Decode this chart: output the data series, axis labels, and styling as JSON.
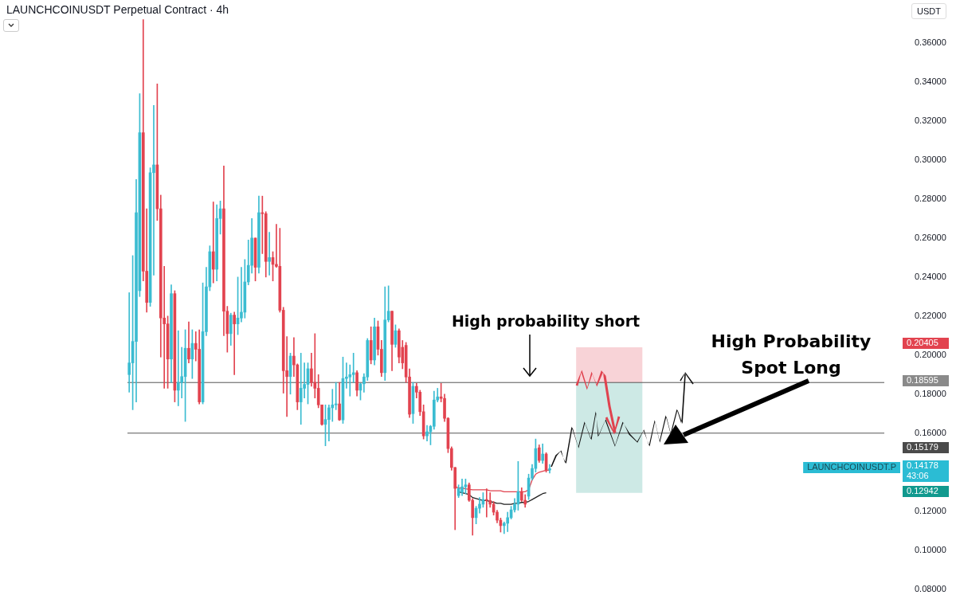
{
  "chart_data": {
    "type": "candlestick",
    "title": "LAUNCHCOINUSDT Perpetual Contract · 4h",
    "ylabel": "USDT",
    "categories": [
      null,
      null,
      null,
      null,
      null,
      null,
      null,
      null,
      null,
      null,
      null,
      null,
      null,
      null,
      null,
      null,
      null,
      null,
      null,
      null,
      null,
      null,
      null,
      null,
      null,
      null,
      null,
      null,
      null,
      null,
      null,
      null,
      null,
      null,
      null,
      null,
      null,
      null,
      null,
      null,
      null,
      null,
      null,
      null,
      null,
      null,
      null,
      null,
      null,
      null,
      null,
      null,
      null,
      null,
      null,
      null,
      null,
      null,
      null,
      null,
      null,
      null,
      null,
      null,
      null,
      null,
      null,
      null,
      null,
      null,
      null,
      null,
      null,
      null,
      null,
      null,
      null,
      null,
      null,
      null,
      null,
      null,
      null,
      null,
      null,
      null,
      null,
      null,
      null,
      null,
      null,
      null,
      null,
      null,
      null,
      null,
      null,
      null,
      null,
      null,
      null,
      null,
      null,
      null,
      null,
      null,
      null,
      null,
      null,
      null,
      null,
      null,
      null,
      null,
      null,
      null,
      null,
      null,
      null,
      null,
      null,
      null,
      null,
      null,
      null,
      null,
      null,
      null,
      null,
      null,
      null,
      null,
      null,
      null,
      null,
      null,
      null,
      null,
      null,
      null,
      null,
      null,
      null,
      null,
      null,
      null,
      null,
      null,
      null,
      null,
      null,
      null,
      null,
      null,
      null,
      null,
      null,
      null,
      null,
      null,
      null,
      null,
      null,
      null,
      null,
      null,
      null,
      null,
      null,
      null,
      null,
      null,
      null,
      null,
      null,
      null,
      null,
      null,
      null,
      null,
      null,
      null,
      null,
      null,
      null,
      null,
      null,
      null,
      null,
      null,
      null,
      null,
      null,
      null,
      null,
      null,
      null,
      null,
      null,
      null,
      null,
      null,
      null,
      null,
      null,
      null,
      null,
      null,
      null,
      null,
      null,
      null,
      null,
      null,
      null,
      null
    ],
    "ohlc": [
      [
        0.19,
        0.232,
        0.181,
        0.196
      ],
      [
        0.196,
        0.251,
        0.172,
        0.207
      ],
      [
        0.207,
        0.29,
        0.176,
        0.273
      ],
      [
        0.233,
        0.334,
        0.23,
        0.314
      ],
      [
        0.314,
        0.372,
        0.238,
        0.243
      ],
      [
        0.243,
        0.275,
        0.222,
        0.227
      ],
      [
        0.227,
        0.296,
        0.225,
        0.2935
      ],
      [
        0.2935,
        0.328,
        0.241,
        0.2975
      ],
      [
        0.2975,
        0.339,
        0.269,
        0.275
      ],
      [
        0.275,
        0.282,
        0.199,
        0.219
      ],
      [
        0.219,
        0.2455,
        0.183,
        0.216
      ],
      [
        0.216,
        0.22,
        0.183,
        0.198
      ],
      [
        0.198,
        0.236,
        0.186,
        0.2315
      ],
      [
        0.2315,
        0.233,
        0.176,
        0.182
      ],
      [
        0.182,
        0.2125,
        0.174,
        0.186
      ],
      [
        0.186,
        0.204,
        0.178,
        0.189
      ],
      [
        0.189,
        0.213,
        0.166,
        0.2035
      ],
      [
        0.2035,
        0.217,
        0.196,
        0.198
      ],
      [
        0.198,
        0.213,
        0.188,
        0.206
      ],
      [
        0.206,
        0.212,
        0.197,
        0.203
      ],
      [
        0.203,
        0.213,
        0.175,
        0.176
      ],
      [
        0.176,
        0.237,
        0.175,
        0.212
      ],
      [
        0.212,
        0.245,
        0.21,
        0.235
      ],
      [
        0.235,
        0.256,
        0.233,
        0.253
      ],
      [
        0.253,
        0.2785,
        0.237,
        0.244
      ],
      [
        0.244,
        0.277,
        0.238,
        0.27
      ],
      [
        0.27,
        0.279,
        0.262,
        0.275
      ],
      [
        0.275,
        0.297,
        0.21,
        0.2225
      ],
      [
        0.2225,
        0.225,
        0.2015,
        0.211
      ],
      [
        0.211,
        0.2215,
        0.205,
        0.2205
      ],
      [
        0.2205,
        0.222,
        0.19,
        0.216
      ],
      [
        0.216,
        0.24,
        0.2105,
        0.219
      ],
      [
        0.219,
        0.245,
        0.217,
        0.222
      ],
      [
        0.222,
        0.249,
        0.219,
        0.2375
      ],
      [
        0.2375,
        0.259,
        0.236,
        0.246
      ],
      [
        0.246,
        0.27,
        0.242,
        0.26
      ],
      [
        0.26,
        0.26,
        0.238,
        0.245
      ],
      [
        0.245,
        0.2815,
        0.242,
        0.273
      ],
      [
        0.273,
        0.2815,
        0.252,
        0.2725
      ],
      [
        0.2725,
        0.2735,
        0.24,
        0.248
      ],
      [
        0.248,
        0.263,
        0.241,
        0.25
      ],
      [
        0.25,
        0.253,
        0.238,
        0.2465
      ],
      [
        0.2465,
        0.267,
        0.245,
        0.2455
      ],
      [
        0.2455,
        0.265,
        0.222,
        0.223
      ],
      [
        0.223,
        0.2245,
        0.1805,
        0.192
      ],
      [
        0.192,
        0.2095,
        0.1685,
        0.189
      ],
      [
        0.189,
        0.201,
        0.18,
        0.1995
      ],
      [
        0.1995,
        0.209,
        0.189,
        0.195
      ],
      [
        0.195,
        0.1955,
        0.172,
        0.176
      ],
      [
        0.176,
        0.201,
        0.1645,
        0.183
      ],
      [
        0.183,
        0.196,
        0.178,
        0.185
      ],
      [
        0.185,
        0.196,
        0.175,
        0.193
      ],
      [
        0.193,
        0.201,
        0.184,
        0.186
      ],
      [
        0.186,
        0.211,
        0.178,
        0.183
      ],
      [
        0.183,
        0.19,
        0.173,
        0.1745
      ],
      [
        0.1745,
        0.1745,
        0.164,
        0.1645
      ],
      [
        0.1645,
        0.1745,
        0.1535,
        0.167
      ],
      [
        0.167,
        0.1745,
        0.156,
        0.173
      ],
      [
        0.173,
        0.1825,
        0.166,
        0.1745
      ],
      [
        0.1745,
        0.186,
        0.172,
        0.175
      ],
      [
        0.175,
        0.186,
        0.1665,
        0.1668
      ],
      [
        0.1668,
        0.199,
        0.165,
        0.188
      ],
      [
        0.188,
        0.196,
        0.183,
        0.1888
      ],
      [
        0.1888,
        0.195,
        0.179,
        0.19
      ],
      [
        0.19,
        0.201,
        0.186,
        0.191
      ],
      [
        0.191,
        0.192,
        0.179,
        0.182
      ],
      [
        0.182,
        0.1855,
        0.177,
        0.1853
      ],
      [
        0.1853,
        0.1905,
        0.181,
        0.1888
      ],
      [
        0.1888,
        0.2085,
        0.187,
        0.2075
      ],
      [
        0.2075,
        0.2145,
        0.1955,
        0.1975
      ],
      [
        0.1975,
        0.219,
        0.195,
        0.2145
      ],
      [
        0.2145,
        0.2175,
        0.2,
        0.203
      ],
      [
        0.203,
        0.2075,
        0.189,
        0.191
      ],
      [
        0.191,
        0.235,
        0.187,
        0.218
      ],
      [
        0.218,
        0.2355,
        0.217,
        0.2225
      ],
      [
        0.2225,
        0.2225,
        0.192,
        0.2055
      ],
      [
        0.2055,
        0.2155,
        0.204,
        0.2125
      ],
      [
        0.2125,
        0.2135,
        0.196,
        0.199
      ],
      [
        0.204,
        0.2075,
        0.193,
        0.196
      ],
      [
        0.205,
        0.2065,
        0.186,
        0.1888
      ],
      [
        0.1888,
        0.193,
        0.168,
        0.1697
      ],
      [
        0.17,
        0.186,
        0.165,
        0.184
      ],
      [
        0.184,
        0.1855,
        0.178,
        0.181
      ],
      [
        0.181,
        0.182,
        0.169,
        0.171
      ],
      [
        0.171,
        0.1745,
        0.157,
        0.1586
      ],
      [
        0.1586,
        0.164,
        0.156,
        0.1607
      ],
      [
        0.1607,
        0.164,
        0.154,
        0.1635
      ],
      [
        0.1635,
        0.1815,
        0.162,
        0.177
      ],
      [
        0.177,
        0.183,
        0.176,
        0.1786
      ],
      [
        0.1786,
        0.1855,
        0.176,
        0.1778
      ],
      [
        0.1778,
        0.18,
        0.166,
        0.1676
      ],
      [
        0.1676,
        0.168,
        0.15,
        0.1521
      ],
      [
        0.1521,
        0.153,
        0.141,
        0.1424
      ],
      [
        0.1424,
        0.1425,
        0.1105,
        0.1317
      ],
      [
        0.128,
        0.1335,
        0.127,
        0.1317
      ],
      [
        0.1297,
        0.1365,
        0.128,
        0.1325
      ],
      [
        0.1325,
        0.1365,
        0.129,
        0.1335
      ],
      [
        0.1335,
        0.1345,
        0.125,
        0.1256
      ],
      [
        0.1256,
        0.1265,
        0.1077,
        0.1167
      ],
      [
        0.1167,
        0.1225,
        0.1135,
        0.1215
      ],
      [
        0.1215,
        0.127,
        0.119,
        0.1236
      ],
      [
        0.1236,
        0.1295,
        0.122,
        0.126
      ],
      [
        0.126,
        0.1315,
        0.117,
        0.1255
      ],
      [
        0.1255,
        0.1295,
        0.122,
        0.1236
      ],
      [
        0.1236,
        0.125,
        0.118,
        0.1195
      ],
      [
        0.1195,
        0.1205,
        0.114,
        0.1154
      ],
      [
        0.1154,
        0.1165,
        0.1093,
        0.1126
      ],
      [
        0.1126,
        0.1145,
        0.1085,
        0.1138
      ],
      [
        0.1138,
        0.1195,
        0.1095,
        0.1167
      ],
      [
        0.1167,
        0.1225,
        0.116,
        0.1207
      ],
      [
        0.1207,
        0.1265,
        0.1195,
        0.1236
      ],
      [
        0.1236,
        0.1455,
        0.1205,
        0.13
      ],
      [
        0.13,
        0.132,
        0.125,
        0.1256
      ],
      [
        0.1256,
        0.1285,
        0.122,
        0.1236
      ],
      [
        0.1277,
        0.139,
        0.126,
        0.137
      ],
      [
        0.137,
        0.144,
        0.136,
        0.1419
      ],
      [
        0.1419,
        0.157,
        0.14,
        0.1521
      ],
      [
        0.1525,
        0.154,
        0.145,
        0.146
      ],
      [
        0.146,
        0.1545,
        0.1445,
        0.1493
      ],
      [
        0.1493,
        0.15,
        0.14,
        0.1411
      ],
      [
        0.1411,
        0.144,
        0.1395,
        0.14178
      ],
      null,
      null,
      null,
      null,
      null,
      null,
      null,
      null,
      null,
      null,
      null,
      null,
      null,
      null,
      null,
      null,
      null,
      null,
      null,
      null,
      null,
      null,
      null,
      null,
      null,
      null,
      null,
      null,
      null,
      null,
      null,
      null,
      null,
      null,
      null,
      null,
      null,
      null,
      null,
      null,
      null,
      null,
      null,
      null,
      null,
      null,
      null,
      null,
      null,
      null,
      null,
      null,
      null,
      null,
      null,
      null,
      null,
      null,
      null,
      null,
      null,
      null,
      null,
      null,
      null,
      null,
      null,
      null,
      null,
      null,
      null,
      null,
      null,
      null,
      null,
      null,
      null,
      null,
      null,
      null,
      null,
      null,
      null,
      null,
      null,
      null,
      null,
      null,
      null,
      null,
      null,
      null,
      null,
      null,
      null
    ],
    "series": [
      {
        "type": "line",
        "color": "#e0434f",
        "values": [
          null,
          null,
          null,
          null,
          null,
          null,
          null,
          null,
          null,
          null,
          null,
          null,
          null,
          null,
          null,
          null,
          null,
          null,
          null,
          null,
          null,
          null,
          null,
          null,
          null,
          null,
          null,
          null,
          null,
          null,
          null,
          null,
          null,
          null,
          null,
          null,
          null,
          null,
          null,
          null,
          null,
          null,
          null,
          null,
          null,
          null,
          null,
          null,
          null,
          null,
          null,
          null,
          null,
          null,
          null,
          null,
          null,
          null,
          null,
          null,
          null,
          null,
          null,
          null,
          null,
          null,
          null,
          null,
          null,
          null,
          null,
          null,
          null,
          null,
          null,
          null,
          null,
          null,
          null,
          null,
          null,
          null,
          null,
          null,
          null,
          null,
          null,
          null,
          null,
          null,
          null,
          null,
          null,
          0.1325,
          0.132,
          0.1318,
          0.1315,
          0.1312,
          0.131,
          0.131,
          0.131,
          0.131,
          0.131,
          0.1305,
          0.1305,
          0.1305,
          0.1305,
          0.13,
          0.13,
          0.13,
          0.13,
          0.13,
          0.13,
          0.13,
          0.131,
          0.136,
          0.139,
          0.14,
          0.1405,
          0.141,
          0.141,
          null,
          null,
          null,
          null,
          null,
          null,
          null,
          null,
          null,
          null,
          null,
          null,
          null,
          null,
          null,
          null,
          null,
          null,
          null,
          null,
          null,
          null,
          null,
          null,
          null,
          null,
          null,
          null,
          null,
          null,
          null,
          null,
          null,
          null,
          null,
          null,
          null,
          null,
          null,
          null,
          null,
          null,
          null,
          null,
          null,
          null,
          null,
          null,
          null,
          null,
          null,
          null,
          null,
          null,
          null,
          null,
          null,
          null,
          null,
          null,
          null,
          null,
          null,
          null,
          null,
          null,
          null,
          null,
          null,
          null,
          null,
          null,
          null,
          null,
          null,
          null,
          null,
          null,
          null,
          null,
          null,
          null,
          null,
          null,
          null,
          null,
          null,
          null,
          null,
          null,
          null,
          null,
          null,
          null,
          null
        ]
      },
      {
        "type": "line",
        "color": "#222222",
        "values": [
          null,
          null,
          null,
          null,
          null,
          null,
          null,
          null,
          null,
          null,
          null,
          null,
          null,
          null,
          null,
          null,
          null,
          null,
          null,
          null,
          null,
          null,
          null,
          null,
          null,
          null,
          null,
          null,
          null,
          null,
          null,
          null,
          null,
          null,
          null,
          null,
          null,
          null,
          null,
          null,
          null,
          null,
          null,
          null,
          null,
          null,
          null,
          null,
          null,
          null,
          null,
          null,
          null,
          null,
          null,
          null,
          null,
          null,
          null,
          null,
          null,
          null,
          null,
          null,
          null,
          null,
          null,
          null,
          null,
          null,
          null,
          null,
          null,
          null,
          null,
          null,
          null,
          null,
          null,
          null,
          null,
          null,
          null,
          null,
          null,
          null,
          null,
          null,
          null,
          null,
          null,
          null,
          null,
          null,
          0.13,
          0.1295,
          0.129,
          0.1285,
          0.127,
          0.1265,
          0.126,
          0.1255,
          0.1255,
          0.125,
          0.1245,
          0.124,
          0.124,
          0.1235,
          0.1235,
          0.1235,
          0.124,
          0.124,
          0.1245,
          0.1245,
          0.125,
          0.126,
          0.127,
          0.128,
          0.129,
          0.1295,
          null,
          null,
          null,
          null,
          null,
          null,
          null,
          null,
          null,
          null,
          null,
          null,
          null,
          null,
          null,
          null,
          null,
          null,
          null,
          null,
          null,
          null,
          null,
          null,
          null,
          null,
          null,
          null,
          null,
          null,
          null,
          null,
          null,
          null,
          null,
          null,
          null,
          null,
          null,
          null,
          null,
          null,
          null,
          null,
          null,
          null,
          null,
          null,
          null,
          null,
          null,
          null,
          null,
          null,
          null,
          null,
          null,
          null,
          null,
          null,
          null,
          null,
          null,
          null,
          null,
          null,
          null,
          null,
          null,
          null,
          null,
          null,
          null,
          null,
          null,
          null,
          null,
          null,
          null,
          null,
          null,
          null,
          null,
          null,
          null,
          null,
          null,
          null,
          null,
          null,
          null,
          null,
          null,
          null,
          null,
          null
        ]
      }
    ],
    "ylim": [
      0.075,
      0.382
    ],
    "yticks": [
      {
        "value": 0.08,
        "label": "0.08000"
      },
      {
        "value": 0.1,
        "label": "0.10000"
      },
      {
        "value": 0.12,
        "label": "0.12000"
      },
      {
        "value": 0.16,
        "label": "0.16000"
      },
      {
        "value": 0.18,
        "label": "0.18000"
      },
      {
        "value": 0.2,
        "label": "0.20000"
      },
      {
        "value": 0.22,
        "label": "0.22000"
      },
      {
        "value": 0.24,
        "label": "0.24000"
      },
      {
        "value": 0.26,
        "label": "0.26000"
      },
      {
        "value": 0.28,
        "label": "0.28000"
      },
      {
        "value": 0.3,
        "label": "0.30000"
      },
      {
        "value": 0.32,
        "label": "0.32000"
      },
      {
        "value": 0.34,
        "label": "0.34000"
      },
      {
        "value": 0.36,
        "label": "0.36000"
      }
    ],
    "tick_labels": "y",
    "marker": "none",
    "bands": [
      {
        "axis": "y",
        "from": 0.18595,
        "to": 0.20405,
        "color": "#f8d3d7"
      },
      {
        "axis": "y",
        "from": 0.12942,
        "to": 0.18595,
        "color": "#cde9e5"
      }
    ],
    "ref_lines": [
      {
        "axis": "y",
        "value": 0.18595,
        "color": "#555555"
      },
      {
        "axis": "y",
        "value": 0.16,
        "color": "#555555"
      }
    ],
    "annotations": [
      "High probability short",
      "High Probability\nSpot Long",
      "0.20405",
      "0.18595",
      "0.15179",
      "0.14178\n43:06",
      "LAUNCHCOINUSDT.P",
      "0.12942"
    ]
  }
}
